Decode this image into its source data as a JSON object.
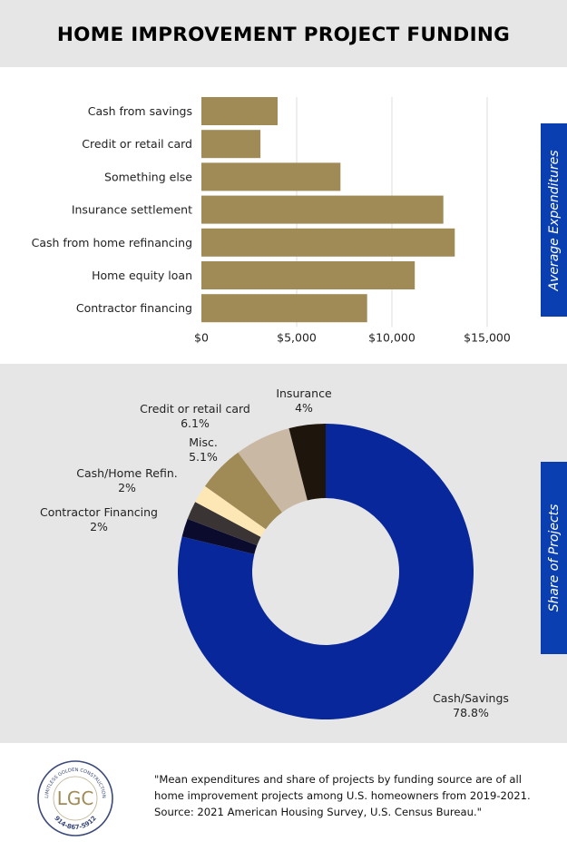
{
  "title": "HOME IMPROVEMENT PROJECT FUNDING",
  "colors": {
    "bar": "#a08b57",
    "grid": "#dddddd",
    "tab": "#0a3fb1",
    "cash_savings": "#08279a",
    "contractor_financing": "#0b0b2e",
    "cash_home_refin": "#3a3434",
    "misc_light": "#fde8b5",
    "misc": "#a08b57",
    "credit_retail": "#c8b8a4",
    "insurance": "#1e160c"
  },
  "chart_data": [
    {
      "type": "bar",
      "orientation": "horizontal",
      "side_label": "Average Expenditures",
      "categories": [
        "Cash from savings",
        "Credit or retail card",
        "Something else",
        "Insurance settlement",
        "Cash from home refinancing",
        "Home equity loan",
        "Contractor financing"
      ],
      "values": [
        4000,
        3100,
        7300,
        12700,
        13300,
        11200,
        8700
      ],
      "xlim": [
        0,
        15000
      ],
      "x_ticks": [
        0,
        5000,
        10000,
        15000
      ],
      "x_tick_labels": [
        "$0",
        "$5,000",
        "$10,000",
        "$15,000"
      ],
      "grid": true
    },
    {
      "type": "pie",
      "donut": true,
      "side_label": "Share of Projects",
      "slices": [
        {
          "label": "Cash/Savings",
          "display_value": "78.8%",
          "value": 78.8,
          "color_key": "cash_savings"
        },
        {
          "label": "Contractor Financing",
          "display_value": "2%",
          "value": 2,
          "color_key": "contractor_financing"
        },
        {
          "label": "",
          "display_value": "",
          "value": 2,
          "color_key": "cash_home_refin"
        },
        {
          "label": "Cash/Home Refin.",
          "display_value": "2%",
          "value": 2,
          "color_key": "misc_light"
        },
        {
          "label": "Misc.",
          "display_value": "5.1%",
          "value": 5.1,
          "color_key": "misc"
        },
        {
          "label": "Credit or retail card",
          "display_value": "6.1%",
          "value": 6.1,
          "color_key": "credit_retail"
        },
        {
          "label": "Insurance",
          "display_value": "4%",
          "value": 4,
          "color_key": "insurance"
        }
      ]
    }
  ],
  "footer": {
    "note": "\"Mean expenditures and share of projects by funding source are of all home improvement projects among U.S. homeowners from 2019-2021. Source: 2021 American Housing Survey, U.S. Census Bureau.\"",
    "logo_letters": "LGC",
    "logo_ring_text": "LIMITLESS GOLDEN CONSTRUCTION",
    "logo_phone": "914-867-5912"
  }
}
